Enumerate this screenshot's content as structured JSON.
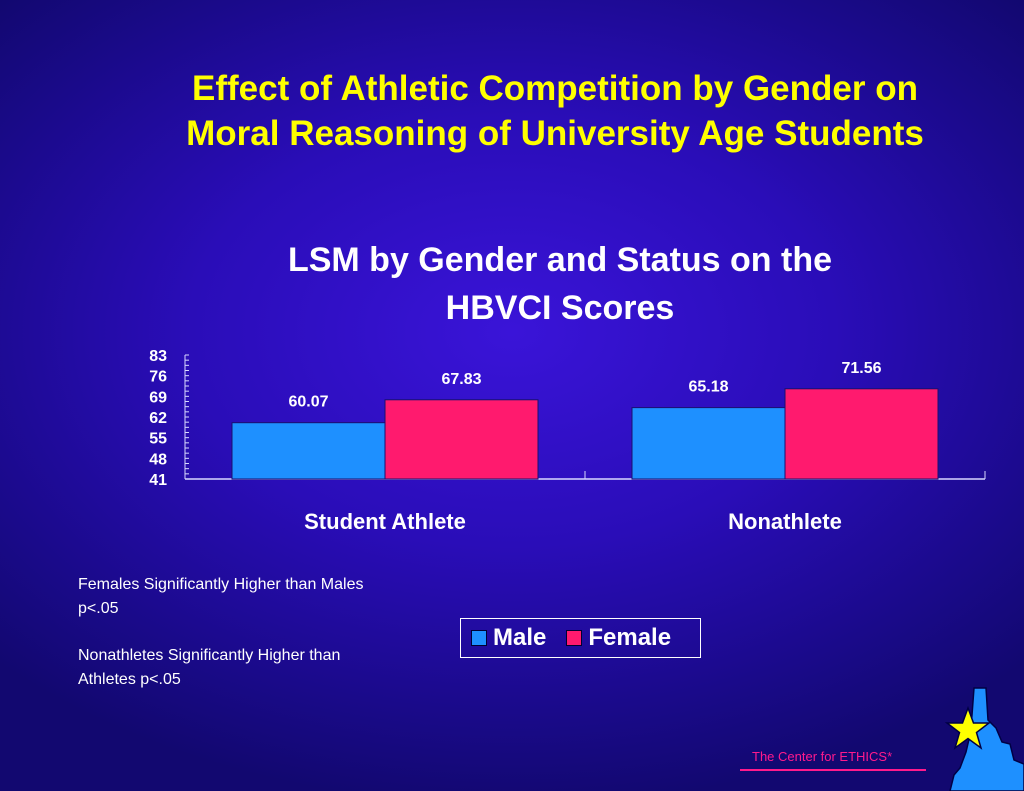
{
  "slide": {
    "title_line1": "Effect of Athletic Competition by Gender on",
    "title_line2": "Moral Reasoning of University Age Students",
    "notes": [
      "Females Significantly Higher than Males p<.05",
      "Nonathletes Significantly Higher than Athletes p<.05"
    ],
    "footer": "The Center for ETHICS*",
    "colors": {
      "title": "#ffff00",
      "male": "#1e90ff",
      "female": "#ff1a6e",
      "footer": "#ff1a8c",
      "map": "#1e90ff",
      "star": "#ffff00"
    },
    "logo_icon": "star-on-map-icon"
  },
  "chart_data": {
    "type": "bar",
    "title_line1": "LSM by Gender and Status on the",
    "title_line2": "HBVCI Scores",
    "categories": [
      "Student Athlete",
      "Nonathlete"
    ],
    "series": [
      {
        "name": "Male",
        "values": [
          60.07,
          65.18
        ]
      },
      {
        "name": "Female",
        "values": [
          67.83,
          71.56
        ]
      }
    ],
    "y_ticks": [
      83,
      76,
      69,
      62,
      55,
      48,
      41
    ],
    "ylim": [
      41,
      83
    ],
    "xlabel": "",
    "ylabel": "",
    "grid": false,
    "legend": [
      "Male",
      "Female"
    ],
    "legend_placement": "bottom-center"
  }
}
